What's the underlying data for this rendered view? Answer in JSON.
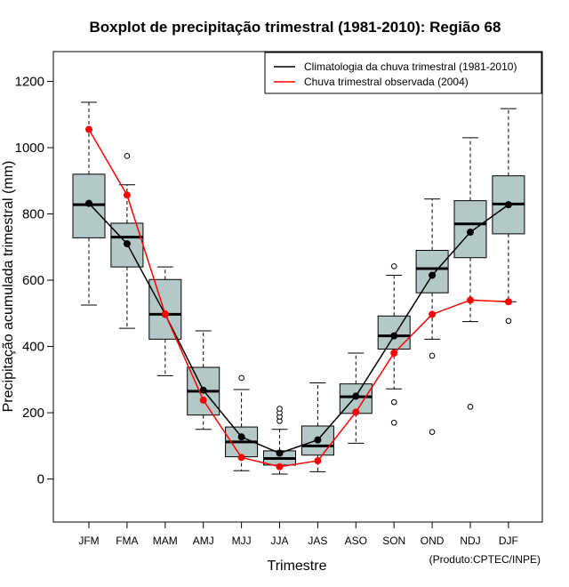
{
  "chart_data": {
    "type": "boxplot",
    "title": "Boxplot de precipitação trimestral (1981-2010): Região 68",
    "xlabel": "Trimestre",
    "ylabel": "Precipitação acumulada trimestral (mm)",
    "ylim": [
      -130,
      1290
    ],
    "yticks": [
      0,
      200,
      400,
      600,
      800,
      1000,
      1200
    ],
    "categories": [
      "JFM",
      "FMA",
      "MAM",
      "AMJ",
      "MJJ",
      "JJA",
      "JAS",
      "ASO",
      "SON",
      "OND",
      "NDJ",
      "DJF"
    ],
    "boxes": [
      {
        "whisker_low": 525,
        "q1": 728,
        "median": 828,
        "q3": 920,
        "whisker_high": 1137,
        "outliers": []
      },
      {
        "whisker_low": 455,
        "q1": 640,
        "median": 730,
        "q3": 772,
        "whisker_high": 888,
        "outliers": [
          975
        ]
      },
      {
        "whisker_low": 312,
        "q1": 422,
        "median": 497,
        "q3": 602,
        "whisker_high": 640,
        "outliers": []
      },
      {
        "whisker_low": 150,
        "q1": 193,
        "median": 265,
        "q3": 337,
        "whisker_high": 447,
        "outliers": []
      },
      {
        "whisker_low": 25,
        "q1": 67,
        "median": 112,
        "q3": 157,
        "whisker_high": 270,
        "outliers": [
          305
        ]
      },
      {
        "whisker_low": 15,
        "q1": 42,
        "median": 62,
        "q3": 85,
        "whisker_high": 150,
        "outliers": [
          175,
          188,
          200,
          212
        ]
      },
      {
        "whisker_low": 22,
        "q1": 72,
        "median": 100,
        "q3": 160,
        "whisker_high": 290,
        "outliers": []
      },
      {
        "whisker_low": 108,
        "q1": 198,
        "median": 248,
        "q3": 287,
        "whisker_high": 380,
        "outliers": []
      },
      {
        "whisker_low": 272,
        "q1": 392,
        "median": 432,
        "q3": 492,
        "whisker_high": 615,
        "outliers": [
          642,
          232,
          170
        ]
      },
      {
        "whisker_low": 422,
        "q1": 562,
        "median": 635,
        "q3": 690,
        "whisker_high": 845,
        "outliers": [
          372,
          142
        ]
      },
      {
        "whisker_low": 475,
        "q1": 668,
        "median": 770,
        "q3": 840,
        "whisker_high": 1030,
        "outliers": [
          218
        ]
      },
      {
        "whisker_low": 535,
        "q1": 740,
        "median": 830,
        "q3": 915,
        "whisker_high": 1118,
        "outliers": [
          477
        ]
      }
    ],
    "series": [
      {
        "name": "Climatologia da chuva trimestral (1981-2010)",
        "color": "#000000",
        "values": [
          832,
          710,
          497,
          268,
          127,
          78,
          118,
          250,
          432,
          615,
          745,
          828
        ]
      },
      {
        "name": "Chuva trimestral observada (2004)",
        "color": "#ff0000",
        "values": [
          1055,
          857,
          498,
          238,
          65,
          37,
          55,
          202,
          380,
          497,
          540,
          535
        ]
      }
    ],
    "legend_position": "top-right",
    "box_fill": "#b4c8c8",
    "credit": "(Produto:CPTEC/INPE)"
  }
}
